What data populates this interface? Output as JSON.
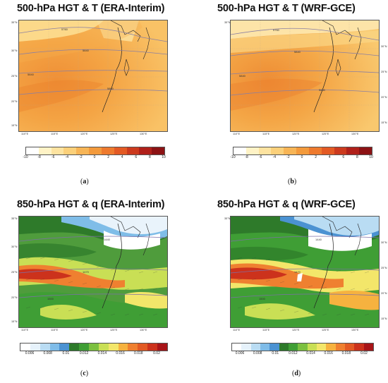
{
  "panels": [
    {
      "id": "a",
      "title": "500-hPa HGT & T (ERA-Interim)",
      "caption_letter": "a",
      "lat_labels": [
        "35°N",
        "30°N",
        "25°N",
        "20°N",
        "15°N"
      ],
      "lon_labels": [
        "110°E",
        "115°E",
        "120°E",
        "125°E",
        "130°E"
      ],
      "contour_labels": [
        "5760",
        "5840",
        "5840",
        "5880"
      ],
      "colorbar_ticks": [
        "-10",
        "-8",
        "-6",
        "-4",
        "-2",
        "0",
        "2",
        "4",
        "6",
        "8",
        "10"
      ],
      "colorbar_colors": [
        "#ffffff",
        "#fff3c6",
        "#fde3a0",
        "#fbd07a",
        "#f7b556",
        "#f39a3c",
        "#ee7a2e",
        "#e35a24",
        "#cc3a1e",
        "#b0201a",
        "#8c1214"
      ]
    },
    {
      "id": "b",
      "title": "500-hPa HGT & T (WRF-GCE)",
      "caption_letter": "b",
      "lat_labels": [
        "35°N",
        "30°N",
        "25°N",
        "20°N",
        "15°N"
      ],
      "lon_labels": [
        "110°E",
        "115°E",
        "120°E",
        "125°E",
        "130°E"
      ],
      "contour_labels": [
        "5760",
        "5840",
        "5840",
        "5880"
      ],
      "colorbar_ticks": [
        "-10",
        "-8",
        "-6",
        "-4",
        "-2",
        "0",
        "2",
        "4",
        "6",
        "8",
        "10"
      ],
      "colorbar_colors": [
        "#ffffff",
        "#fff3c6",
        "#fde3a0",
        "#fbd07a",
        "#f7b556",
        "#f39a3c",
        "#ee7a2e",
        "#e35a24",
        "#cc3a1e",
        "#b0201a",
        "#8c1214"
      ]
    },
    {
      "id": "c",
      "title": "850-hPa HGT & q (ERA-Interim)",
      "caption_letter": "c",
      "lat_labels": [
        "35°N",
        "30°N",
        "25°N",
        "20°N",
        "15°N"
      ],
      "lon_labels": [
        "110°E",
        "115°E",
        "120°E",
        "125°E",
        "130°E"
      ],
      "contour_labels": [
        "1440",
        "1470",
        "1500"
      ],
      "colorbar_ticks": [
        "0.006",
        "0.008",
        "0.01",
        "0.012",
        "0.014",
        "0.016",
        "0.018",
        "0.02"
      ],
      "colorbar_colors": [
        "#ffffff",
        "#e6f2fb",
        "#b9dcf3",
        "#7fbce8",
        "#4b92d2",
        "#2d7a2a",
        "#3f9e35",
        "#7cc040",
        "#c9df55",
        "#f3e66a",
        "#f6b23f",
        "#ef8030",
        "#e25a24",
        "#cc321c",
        "#a81418"
      ]
    },
    {
      "id": "d",
      "title": "850-hPa HGT & q (WRF-GCE)",
      "caption_letter": "d",
      "lat_labels": [
        "35°N",
        "30°N",
        "25°N",
        "20°N",
        "15°N"
      ],
      "lon_labels": [
        "110°E",
        "115°E",
        "120°E",
        "125°E",
        "130°E"
      ],
      "contour_labels": [
        "1440",
        "1470",
        "1500"
      ],
      "colorbar_ticks": [
        "0.006",
        "0.008",
        "0.01",
        "0.012",
        "0.014",
        "0.016",
        "0.018",
        "0.02"
      ],
      "colorbar_colors": [
        "#ffffff",
        "#e6f2fb",
        "#b9dcf3",
        "#7fbce8",
        "#4b92d2",
        "#2d7a2a",
        "#3f9e35",
        "#7cc040",
        "#c9df55",
        "#f3e66a",
        "#f6b23f",
        "#ef8030",
        "#e25a24",
        "#cc321c",
        "#a81418"
      ]
    }
  ]
}
